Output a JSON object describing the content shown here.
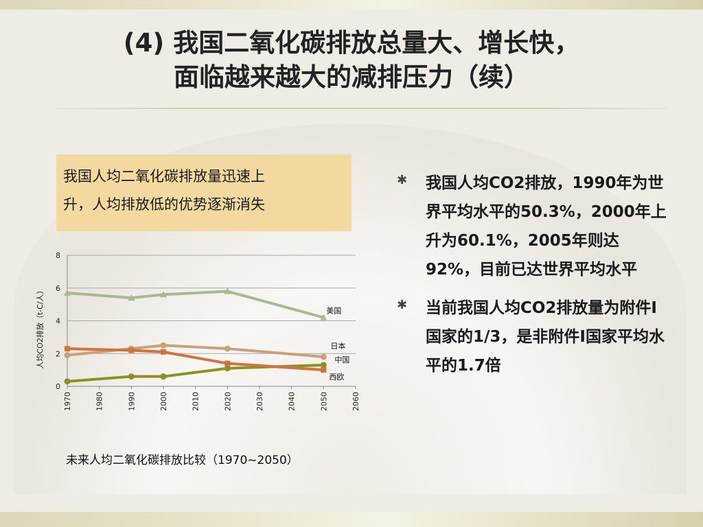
{
  "slide": {
    "title_line1": "(4) 我国二氧化碳排放总量大、增长快，",
    "title_line2": "面临越来越大的减排压力（续）",
    "callout_line1": "我国人均二氧化碳排放量迅速上",
    "callout_line2": "升，人均排放低的优势逐渐消失",
    "caption": "未来人均二氧化碳排放比较（1970~2050）",
    "bullets": [
      {
        "icon": "asterisk-icon",
        "text": "我国人均CO2排放，1990年为世界平均水平的50.3%，2000年上升为60.1%，2005年则达92%，目前已达世界平均水平"
      },
      {
        "icon": "asterisk-icon",
        "text": "当前我国人均CO2排放量为附件I国家的1/3，是非附件I国家平均水平的1.7倍"
      }
    ]
  },
  "chart_data": {
    "type": "line",
    "title": "",
    "xlabel": "",
    "ylabel": "人均CO2排放（t-C/人）",
    "xlim": [
      1970,
      2060
    ],
    "ylim": [
      0,
      8
    ],
    "x_ticks": [
      1970,
      1980,
      1990,
      2000,
      2010,
      2020,
      2030,
      2040,
      2050,
      2060
    ],
    "y_ticks": [
      0,
      2,
      4,
      6,
      8
    ],
    "grid": "horizontal",
    "legend": "inline labels at right end of lines",
    "series": [
      {
        "name": "美国",
        "color": "#a9b894",
        "x": [
          1970,
          1990,
          2000,
          2020,
          2050
        ],
        "y": [
          5.7,
          5.4,
          5.6,
          5.8,
          4.2
        ]
      },
      {
        "name": "日本",
        "color": "#c9a27a",
        "x": [
          1970,
          1990,
          2000,
          2020,
          2050
        ],
        "y": [
          1.9,
          2.3,
          2.5,
          2.3,
          1.8
        ]
      },
      {
        "name": "中国",
        "color": "#8c9220",
        "x": [
          1970,
          1990,
          2000,
          2020,
          2050
        ],
        "y": [
          0.3,
          0.6,
          0.6,
          1.1,
          1.3
        ]
      },
      {
        "name": "西欧",
        "color": "#d0733c",
        "x": [
          1970,
          1990,
          2000,
          2020,
          2050
        ],
        "y": [
          2.3,
          2.2,
          2.1,
          1.4,
          1.0
        ]
      }
    ]
  }
}
